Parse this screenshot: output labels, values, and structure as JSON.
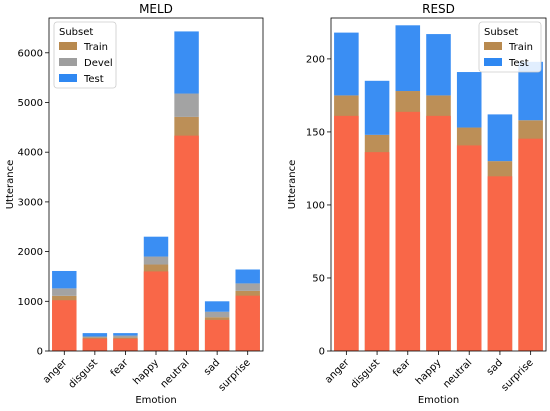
{
  "chart_data": [
    {
      "type": "bar",
      "stacked": true,
      "title": "MELD",
      "xlabel": "Emotion",
      "ylabel": "Utterance",
      "categories": [
        "anger",
        "disgust",
        "fear",
        "happy",
        "neutral",
        "sad",
        "surprise"
      ],
      "ylim": [
        0,
        6700
      ],
      "yticks": [
        0,
        1000,
        2000,
        3000,
        4000,
        5000,
        6000
      ],
      "legend_title": "Subset",
      "legend_position": "top-left",
      "series": [
        {
          "name": "Train",
          "color": "#b8894e",
          "values": [
            1110,
            270,
            270,
            1740,
            4710,
            680,
            1210
          ]
        },
        {
          "name": "Devel",
          "color": "#9e9e9e",
          "values": [
            150,
            22,
            40,
            160,
            470,
            110,
            150
          ]
        },
        {
          "name": "Test",
          "color": "#2f88f2",
          "values": [
            350,
            68,
            50,
            400,
            1250,
            210,
            280
          ]
        }
      ]
    },
    {
      "type": "bar",
      "stacked": true,
      "title": "RESD",
      "xlabel": "Emotion",
      "ylabel": "Utterance",
      "categories": [
        "anger",
        "disgust",
        "fear",
        "happy",
        "neutral",
        "sad",
        "surprise"
      ],
      "ylim": [
        0,
        228
      ],
      "yticks": [
        0,
        50,
        100,
        150,
        200
      ],
      "legend_title": "Subset",
      "legend_position": "top-right",
      "series": [
        {
          "name": "Train",
          "color": "#b8894e",
          "values": [
            175,
            148,
            178,
            175,
            153,
            130,
            158
          ]
        },
        {
          "name": "Test",
          "color": "#2f88f2",
          "values": [
            43,
            37,
            45,
            42,
            38,
            32,
            40
          ]
        }
      ]
    }
  ]
}
